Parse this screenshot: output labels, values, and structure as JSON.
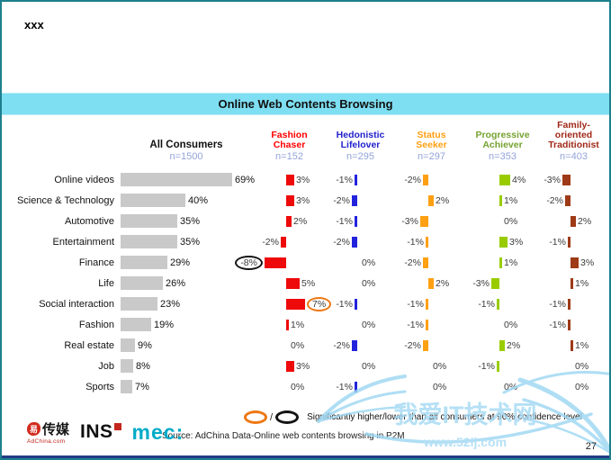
{
  "slide": {
    "note": "xxx",
    "title": "Online Web Contents Browsing",
    "page_number": "27"
  },
  "table": {
    "all_consumers": {
      "label": "All Consumers",
      "n": "n=1500",
      "bar_color": "#c9c9c9"
    },
    "segments": [
      {
        "label": "Fashion Chaser",
        "n": "n=152",
        "bar_color": "#ee0a0a",
        "text_color": "#ff0000"
      },
      {
        "label": "Hedonistic Lifelover",
        "n": "n=295",
        "bar_color": "#2222dd",
        "text_color": "#2222cc"
      },
      {
        "label": "Status Seeker",
        "n": "n=297",
        "bar_color": "#ffa013",
        "text_color": "#ffa013"
      },
      {
        "label": "Progressive Achiever",
        "n": "n=353",
        "bar_color": "#99cc00",
        "text_color": "#76a231"
      },
      {
        "label": "Family-oriented Traditionist",
        "n": "n=403",
        "bar_color": "#9e3a17",
        "text_color": "#a02819"
      }
    ],
    "rows": [
      {
        "category": "Online videos",
        "all": 69,
        "diffs": [
          3,
          -1,
          -2,
          4,
          -3
        ]
      },
      {
        "category": "Science & Technology",
        "all": 40,
        "diffs": [
          3,
          -2,
          2,
          1,
          -2
        ]
      },
      {
        "category": "Automotive",
        "all": 35,
        "diffs": [
          2,
          -1,
          -3,
          0,
          2
        ]
      },
      {
        "category": "Entertainment",
        "all": 35,
        "diffs": [
          -2,
          -2,
          -1,
          3,
          -1
        ]
      },
      {
        "category": "Finance",
        "all": 29,
        "diffs": [
          -8,
          0,
          -2,
          1,
          3
        ]
      },
      {
        "category": "Life",
        "all": 26,
        "diffs": [
          5,
          0,
          2,
          -3,
          1
        ]
      },
      {
        "category": "Social interaction",
        "all": 23,
        "diffs": [
          7,
          -1,
          -1,
          -1,
          -1
        ]
      },
      {
        "category": "Fashion",
        "all": 19,
        "diffs": [
          1,
          0,
          -1,
          0,
          -1
        ]
      },
      {
        "category": "Real estate",
        "all": 9,
        "diffs": [
          0,
          -2,
          -2,
          2,
          1
        ]
      },
      {
        "category": "Job",
        "all": 8,
        "diffs": [
          3,
          0,
          0,
          -1,
          0
        ]
      },
      {
        "category": "Sports",
        "all": 7,
        "diffs": [
          0,
          -1,
          0,
          0,
          0
        ]
      }
    ],
    "annotations": [
      {
        "row_index": 4,
        "segment_index": 0,
        "style": "black"
      },
      {
        "row_index": 6,
        "segment_index": 0,
        "style": "orange"
      }
    ]
  },
  "legend": {
    "separator": "/",
    "text": "Significantly higher/lower than all consumers at 90% confidence level",
    "orange_color": "#ee7712",
    "black_color": "#141414"
  },
  "source": "Source: AdChina Data-Online web contents browsing in P2M",
  "logos": {
    "adchina_badge": "易",
    "adchina_chars": "传媒",
    "adchina_sub": "AdChina.com",
    "ins": "INS",
    "mec": "mec:"
  },
  "watermark": {
    "line1": "我爱IT技术网",
    "line2": "www.52ij.com"
  },
  "chart_data": {
    "type": "bar",
    "title": "Online Web Contents Browsing",
    "unit": "%",
    "categories": [
      "Online videos",
      "Science & Technology",
      "Automotive",
      "Entertainment",
      "Finance",
      "Life",
      "Social interaction",
      "Fashion",
      "Real estate",
      "Job",
      "Sports"
    ],
    "series": [
      {
        "name": "All Consumers (n=1500)",
        "role": "base percentage",
        "values": [
          69,
          40,
          35,
          35,
          29,
          26,
          23,
          19,
          9,
          8,
          7
        ]
      },
      {
        "name": "Fashion Chaser (n=152)",
        "role": "difference vs all consumers",
        "values": [
          3,
          3,
          2,
          -2,
          -8,
          5,
          7,
          1,
          0,
          3,
          0
        ]
      },
      {
        "name": "Hedonistic Lifelover (n=295)",
        "role": "difference vs all consumers",
        "values": [
          -1,
          -2,
          -1,
          -2,
          0,
          0,
          -1,
          0,
          -2,
          0,
          -1
        ]
      },
      {
        "name": "Status Seeker (n=297)",
        "role": "difference vs all consumers",
        "values": [
          -2,
          2,
          -3,
          -1,
          -2,
          2,
          -1,
          -1,
          -2,
          0,
          0
        ]
      },
      {
        "name": "Progressive Achiever (n=353)",
        "role": "difference vs all consumers",
        "values": [
          4,
          1,
          0,
          3,
          1,
          -3,
          -1,
          0,
          2,
          -1,
          0
        ]
      },
      {
        "name": "Family-oriented Traditionist (n=403)",
        "role": "difference vs all consumers",
        "values": [
          -3,
          -2,
          2,
          -1,
          3,
          1,
          -1,
          -1,
          1,
          0,
          0
        ]
      }
    ],
    "annotations": [
      {
        "series": "Fashion Chaser",
        "category": "Finance",
        "value": -8,
        "marker": "black-ellipse",
        "meaning": "significantly lower than all consumers at 90% confidence"
      },
      {
        "series": "Fashion Chaser",
        "category": "Social interaction",
        "value": 7,
        "marker": "orange-ellipse",
        "meaning": "significantly higher than all consumers at 90% confidence"
      }
    ],
    "layout": {
      "orientation": "horizontal bars",
      "grid": false,
      "legend_position": "column headers"
    }
  }
}
